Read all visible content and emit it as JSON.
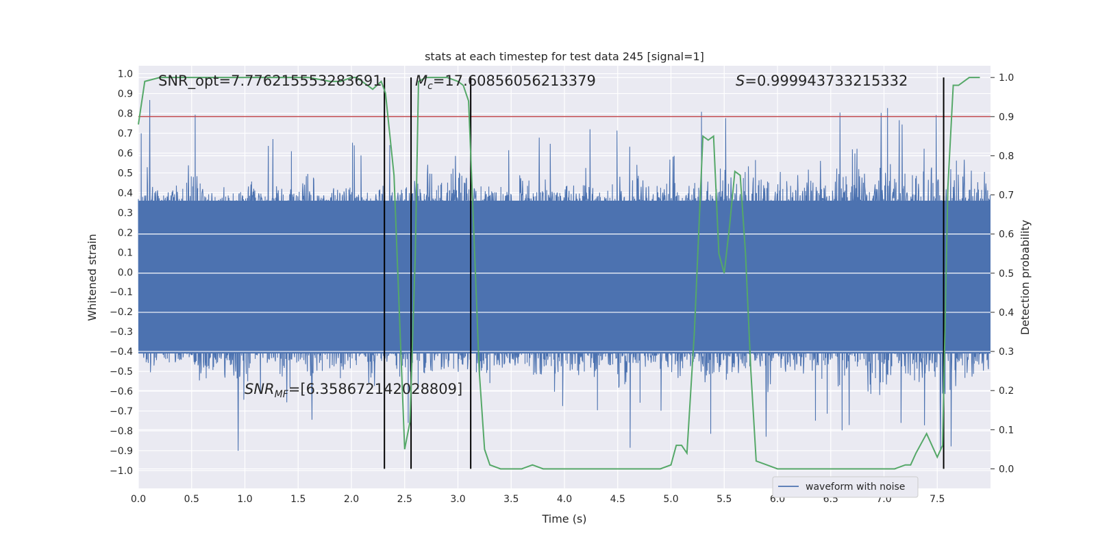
{
  "chart_data": {
    "type": "line",
    "title": "stats at each timestep for test data 245 [signal=1]",
    "xlabel": "Time (s)",
    "ylabel_left": "Whitened strain",
    "ylabel_right": "Detection probability",
    "xlim": [
      0.0,
      8.0
    ],
    "ylim_left": [
      -1.09,
      1.04
    ],
    "ylim_right": [
      -0.05,
      1.03
    ],
    "x_ticks": [
      "0.0",
      "0.5",
      "1.0",
      "1.5",
      "2.0",
      "2.5",
      "3.0",
      "3.5",
      "4.0",
      "4.5",
      "5.0",
      "5.5",
      "6.0",
      "6.5",
      "7.0",
      "7.5"
    ],
    "y_ticks_left": [
      "1.0",
      "0.9",
      "0.8",
      "0.7",
      "0.6",
      "0.5",
      "0.4",
      "0.3",
      "0.2",
      "0.1",
      "0.0",
      "−0.1",
      "−0.2",
      "−0.3",
      "−0.4",
      "−0.5",
      "−0.6",
      "−0.7",
      "−0.8",
      "−0.9",
      "−1.0"
    ],
    "y_ticks_right": [
      "1.0",
      "0.9",
      "0.8",
      "0.7",
      "0.6",
      "0.5",
      "0.4",
      "0.3",
      "0.2",
      "0.1",
      "0.0"
    ],
    "grid": true,
    "legend": {
      "position": "lower-right",
      "entries": [
        "waveform with noise"
      ]
    },
    "annotations": {
      "snr_opt": "SNR_opt=7.776215553283691",
      "mc_symbol": "M",
      "mc_sub": "c",
      "mc_value": "=17.60856056213379",
      "s_symbol": "S",
      "s_value": "=0.999943733215332",
      "snrmf_symbol": "SNR",
      "snrmf_sub": "MF",
      "snrmf_value": "=[6.358672142028809]"
    },
    "threshold": {
      "axis": "right",
      "value": 0.9,
      "color": "#c44e52"
    },
    "vertical_lines": {
      "x": [
        2.31,
        2.56,
        3.12,
        7.56
      ],
      "ymin": 0.0,
      "ymax": 1.0,
      "axis": "right",
      "color": "#000000"
    },
    "series": [
      {
        "name": "waveform with noise",
        "axis": "left",
        "color": "#4c72b0",
        "note_envelope": "dense noise; values listed as upper/lower envelope",
        "x": [
          0.0,
          0.1,
          0.2,
          0.3,
          0.4,
          0.5,
          0.6,
          0.7,
          0.8,
          0.9,
          1.0,
          1.1,
          1.2,
          1.3,
          1.4,
          1.5,
          1.6,
          1.7,
          1.8,
          1.9,
          2.0,
          2.1,
          2.2,
          2.3,
          2.4,
          2.5,
          2.6,
          2.7,
          2.8,
          2.9,
          3.0,
          3.1,
          3.2,
          3.3,
          3.4,
          3.5,
          3.6,
          3.7,
          3.8,
          3.9,
          4.0,
          4.1,
          4.2,
          4.3,
          4.4,
          4.5,
          4.6,
          4.7,
          4.8,
          4.9,
          5.0,
          5.1,
          5.2,
          5.3,
          5.4,
          5.5,
          5.6,
          5.7,
          5.8,
          5.9,
          6.0,
          6.1,
          6.2,
          6.3,
          6.4,
          6.5,
          6.6,
          6.7,
          6.8,
          6.9,
          7.0,
          7.1,
          7.2,
          7.3,
          7.4,
          7.5,
          7.6,
          7.7,
          7.8,
          7.9
        ],
        "upper": [
          0.63,
          0.89,
          0.55,
          0.6,
          0.65,
          0.84,
          0.7,
          0.58,
          0.64,
          0.56,
          0.6,
          0.72,
          0.62,
          0.7,
          0.58,
          0.66,
          0.75,
          0.6,
          0.64,
          0.72,
          0.66,
          0.58,
          0.62,
          0.7,
          0.6,
          0.68,
          0.72,
          0.9,
          0.84,
          0.68,
          0.92,
          0.8,
          0.73,
          0.64,
          0.66,
          0.6,
          0.8,
          0.64,
          0.7,
          0.62,
          0.67,
          0.62,
          0.76,
          0.66,
          0.62,
          0.72,
          0.6,
          0.84,
          0.64,
          0.62,
          0.93,
          0.68,
          0.6,
          0.84,
          0.7,
          0.8,
          0.62,
          0.86,
          0.82,
          0.7,
          0.77,
          0.88,
          0.68,
          0.76,
          0.9,
          0.7,
          0.82,
          0.9,
          0.88,
          0.7,
          0.84,
          0.8,
          0.72,
          0.86,
          0.9,
          0.78,
          0.8,
          0.82,
          0.84,
          0.78
        ],
        "lower": [
          -0.45,
          -0.72,
          -0.55,
          -0.76,
          -0.62,
          -0.6,
          -0.78,
          -0.7,
          -0.68,
          -0.93,
          -0.85,
          -0.62,
          -0.6,
          -0.7,
          -0.93,
          -0.62,
          -0.78,
          -0.66,
          -0.7,
          -0.72,
          -0.64,
          -0.66,
          -0.82,
          -0.62,
          -0.76,
          -0.7,
          -0.88,
          -0.8,
          -0.76,
          -0.66,
          -0.68,
          -0.7,
          -0.8,
          -0.88,
          -0.7,
          -0.72,
          -0.64,
          -0.82,
          -0.7,
          -0.85,
          -0.64,
          -0.68,
          -0.74,
          -0.7,
          -0.66,
          -0.8,
          -0.93,
          -0.66,
          -0.64,
          -0.7,
          -0.68,
          -0.74,
          -0.62,
          -0.8,
          -0.82,
          -0.74,
          -0.72,
          -0.66,
          -0.68,
          -0.84,
          -0.66,
          -0.72,
          -0.68,
          -0.76,
          -0.74,
          -0.7,
          -0.8,
          -0.76,
          -0.78,
          -0.84,
          -1.0,
          -0.7,
          -0.8,
          -0.74,
          -0.78,
          -0.88,
          -0.92,
          -0.78,
          -0.72,
          -0.68
        ]
      },
      {
        "name": "",
        "axis": "right",
        "color": "#55a868",
        "x": [
          0.0,
          0.06,
          0.2,
          0.4,
          0.6,
          0.8,
          1.0,
          1.2,
          1.4,
          1.6,
          1.8,
          1.9,
          2.0,
          2.05,
          2.15,
          2.2,
          2.28,
          2.32,
          2.4,
          2.5,
          2.55,
          2.6,
          2.63,
          2.7,
          2.8,
          2.9,
          3.0,
          3.05,
          3.1,
          3.15,
          3.2,
          3.25,
          3.3,
          3.4,
          3.6,
          3.7,
          3.8,
          4.0,
          4.2,
          4.4,
          4.6,
          4.8,
          4.9,
          5.0,
          5.05,
          5.1,
          5.15,
          5.22,
          5.3,
          5.35,
          5.4,
          5.45,
          5.5,
          5.55,
          5.6,
          5.65,
          5.7,
          5.75,
          5.8,
          5.9,
          6.0,
          6.2,
          6.4,
          6.6,
          6.8,
          7.0,
          7.1,
          7.2,
          7.25,
          7.3,
          7.4,
          7.45,
          7.5,
          7.55,
          7.6,
          7.65,
          7.7,
          7.8,
          7.9
        ],
        "y": [
          0.88,
          0.99,
          1.0,
          1.0,
          1.0,
          1.0,
          1.0,
          1.0,
          1.0,
          1.0,
          0.99,
          0.99,
          1.0,
          1.0,
          0.98,
          0.97,
          0.99,
          0.96,
          0.75,
          0.05,
          0.12,
          0.55,
          0.99,
          1.0,
          1.0,
          1.0,
          0.99,
          0.98,
          0.94,
          0.6,
          0.25,
          0.05,
          0.01,
          0.0,
          0.0,
          0.01,
          0.0,
          0.0,
          0.0,
          0.0,
          0.0,
          0.0,
          0.0,
          0.01,
          0.06,
          0.06,
          0.04,
          0.35,
          0.85,
          0.84,
          0.85,
          0.55,
          0.5,
          0.62,
          0.76,
          0.75,
          0.55,
          0.25,
          0.02,
          0.01,
          0.0,
          0.0,
          0.0,
          0.0,
          0.0,
          0.0,
          0.0,
          0.01,
          0.01,
          0.04,
          0.09,
          0.06,
          0.03,
          0.06,
          0.72,
          0.98,
          0.98,
          1.0,
          1.0
        ]
      }
    ]
  }
}
